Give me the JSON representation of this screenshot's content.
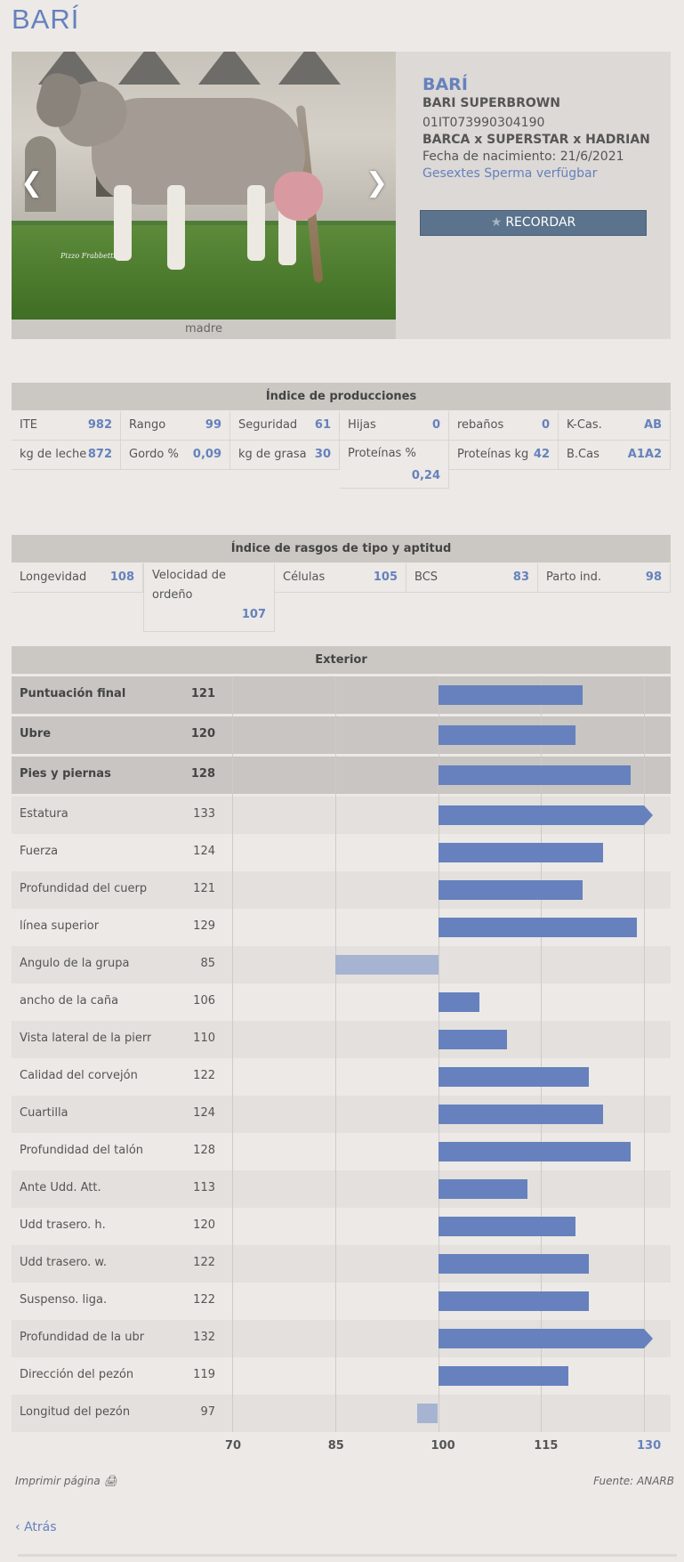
{
  "page": {
    "title": "BARÍ"
  },
  "header": {
    "photo_caption": "madre",
    "photo_signature": "Pizzo Frabbetti",
    "name": "BARÍ",
    "full_name": "BARI SUPERBROWN",
    "id": "01IT073990304190",
    "pedigree": "BARCA x SUPERSTAR x HADRIAN",
    "birth": "Fecha de nacimiento: 21/6/2021",
    "sexed": "Gesextes Sperma verfügbar",
    "remember_label": "RECORDAR",
    "prev_icon": "chevron-left-icon",
    "next_icon": "chevron-right-icon"
  },
  "production": {
    "title": "Índice de producciones",
    "row1": [
      {
        "label": "ITE",
        "value": "982"
      },
      {
        "label": "Rango",
        "value": "99"
      },
      {
        "label": "Seguridad",
        "value": "61"
      },
      {
        "label": "Hijas",
        "value": "0"
      },
      {
        "label": "rebaños",
        "value": "0"
      },
      {
        "label": "K-Cas.",
        "value": "AB"
      }
    ],
    "row2": [
      {
        "label": "kg de leche",
        "value": "872"
      },
      {
        "label": "Gordo %",
        "value": "0,09"
      },
      {
        "label": "kg de grasa",
        "value": "30"
      },
      {
        "label": "Proteínas %",
        "value": "0,24"
      },
      {
        "label": "Proteínas kg",
        "value": "42"
      },
      {
        "label": "B.Cas",
        "value": "A1A2"
      }
    ]
  },
  "type_traits": {
    "title": "Índice de rasgos de tipo y aptitud",
    "cells": [
      {
        "label": "Longevidad",
        "value": "108"
      },
      {
        "label": "Velocidad de ordeño",
        "label_line1": "Velocidad de",
        "label_line2": "ordeño",
        "value": "107"
      },
      {
        "label": "Células",
        "value": "105"
      },
      {
        "label": "BCS",
        "value": "83"
      },
      {
        "label": "Parto ind.",
        "value": "98"
      }
    ]
  },
  "exterior": {
    "title": "Exterior",
    "colors": {
      "bar": "#6681bd",
      "bar_negative": "#a6b3d1",
      "row_bold": "#c8c5c2",
      "row_alt": "#e3e0dd"
    },
    "chart_data": {
      "type": "bar",
      "orientation": "horizontal",
      "baseline": 100,
      "xlim": [
        70,
        130
      ],
      "ticks": [
        "70",
        "85",
        "100",
        "115",
        "130"
      ],
      "categories": [
        "Puntuación final",
        "Ubre",
        "Pies y piernas",
        "Estatura",
        "Fuerza",
        "Profundidad del cuerp",
        "línea superior",
        "Ángulo de la grupa",
        "ancho de la caña",
        "Vista lateral de la pierr",
        "Calidad del corvejón",
        "Cuartilla",
        "Profundidad del talón",
        "Ante Udd. Att.",
        "Udd trasero. h.",
        "Udd trasero. w.",
        "Suspenso. liga.",
        "Profundidad de la ubr",
        "Dirección del pezón",
        "Longitud del pezón"
      ],
      "values": [
        121,
        120,
        128,
        133,
        124,
        121,
        129,
        85,
        106,
        110,
        122,
        124,
        128,
        113,
        120,
        122,
        122,
        132,
        119,
        97
      ],
      "bold": [
        true,
        true,
        true,
        false,
        false,
        false,
        false,
        false,
        false,
        false,
        false,
        false,
        false,
        false,
        false,
        false,
        false,
        false,
        false,
        false
      ]
    }
  },
  "footer": {
    "print_label": "Imprimir página",
    "print_icon": "printer-icon",
    "source": "Fuente: ANARB",
    "back_label": "Atrás",
    "back_icon": "chevron-left-icon"
  }
}
